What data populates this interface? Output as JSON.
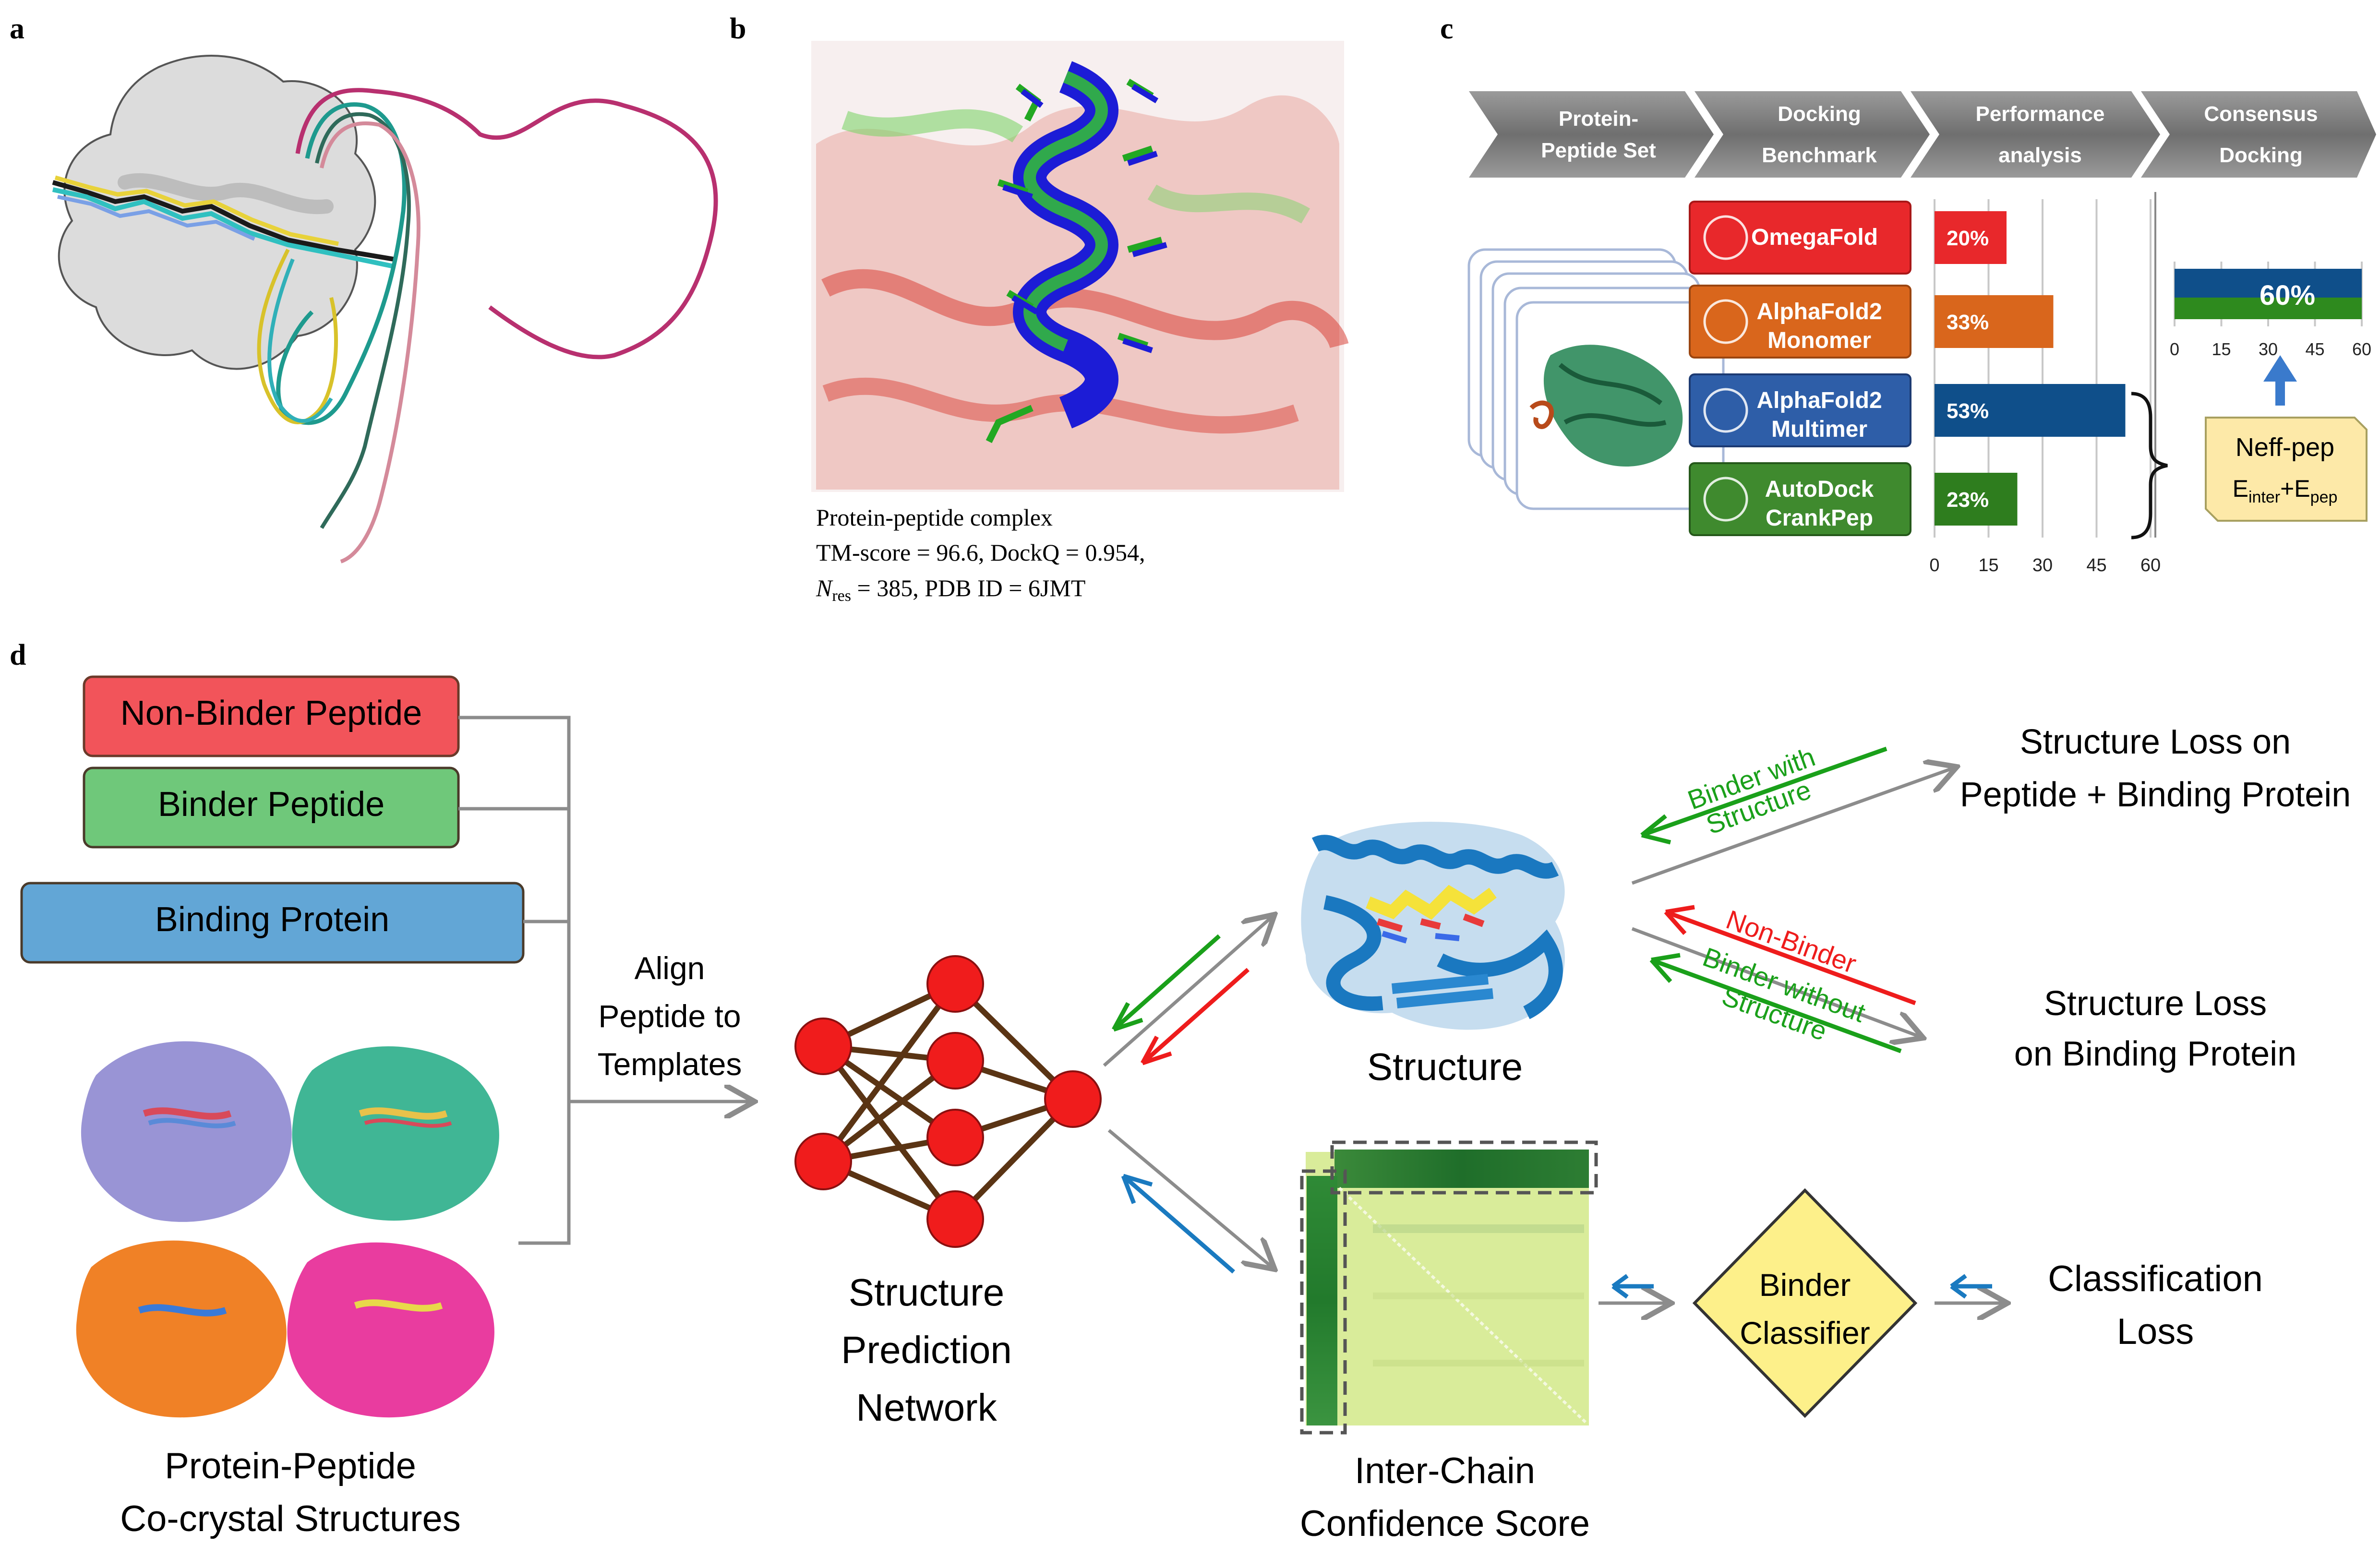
{
  "panels": {
    "a": "a",
    "b": "b",
    "c": "c",
    "d": "d"
  },
  "panel_b": {
    "caption_line1": "Protein-peptide complex",
    "caption_line2": "TM-score = 96.6, DockQ = 0.954,",
    "caption_line3_n": "N",
    "caption_line3_sub": "res",
    "caption_line3_rest": " = 385, PDB ID = 6JMT"
  },
  "panel_c": {
    "pipeline": [
      {
        "line1": "Protein-",
        "line2": "Peptide Set"
      },
      {
        "line1": "Docking",
        "line2": "Benchmark"
      },
      {
        "line1": "Performance",
        "line2": "analysis"
      },
      {
        "line1": "Consensus",
        "line2": "Docking"
      }
    ],
    "methods": [
      {
        "line1": "OmegaFold",
        "line2": "",
        "color": "#e8282b"
      },
      {
        "line1": "AlphaFold2",
        "line2": "Monomer",
        "color": "#d9661c"
      },
      {
        "line1": "AlphaFold2",
        "line2": "Multimer",
        "color": "#2e5ea8"
      },
      {
        "line1": "AutoDock",
        "line2": "CrankPep",
        "color": "#3f8a2e"
      }
    ],
    "neff_line1": "Neff-pep",
    "neff_e1": "E",
    "neff_sub1": "inter",
    "neff_plus": "+E",
    "neff_sub2": "pep"
  },
  "chart_data": [
    {
      "type": "bar",
      "orientation": "horizontal",
      "categories": [
        "OmegaFold",
        "AlphaFold2 Monomer",
        "AlphaFold2 Multimer",
        "AutoDock CrankPep"
      ],
      "values": [
        20,
        33,
        53,
        23
      ],
      "value_labels": [
        "20%",
        "33%",
        "53%",
        "23%"
      ],
      "colors": [
        "#e8282b",
        "#d9661c",
        "#0f4f8a",
        "#2e7d1e"
      ],
      "xlim": [
        0,
        60
      ],
      "ticks": [
        "0",
        "15",
        "30",
        "45",
        "60"
      ],
      "grid": true
    },
    {
      "type": "bar",
      "orientation": "horizontal",
      "categories": [
        "Consensus"
      ],
      "values": [
        60
      ],
      "value_labels": [
        "60%"
      ],
      "colors": [
        "#0f4f8a",
        "#2e8a1e"
      ],
      "xlim": [
        0,
        60
      ],
      "ticks": [
        "0",
        "15",
        "30",
        "45",
        "60"
      ],
      "grid": true
    }
  ],
  "panel_d": {
    "non_binder": "Non-Binder Peptide",
    "binder": "Binder Peptide",
    "binding_protein": "Binding Protein",
    "align_line1": "Align",
    "align_line2": "Peptide to",
    "align_line3": "Templates",
    "cocrystal_line1": "Protein-Peptide",
    "cocrystal_line2": "Co-crystal Structures",
    "network_line1": "Structure",
    "network_line2": "Prediction",
    "network_line3": "Network",
    "structure": "Structure",
    "confidence_line1": "Inter-Chain",
    "confidence_line2": "Confidence Score",
    "classifier_line1": "Binder",
    "classifier_line2": "Classifier",
    "classification_line1": "Classification",
    "classification_line2": "Loss",
    "loss1_line1": "Structure Loss on",
    "loss1_line2": "Peptide + Binding Protein",
    "loss2_line1": "Structure Loss",
    "loss2_line2": "on Binding Protein",
    "binder_with_line1": "Binder with",
    "binder_with_line2": "Structure",
    "non_binder_arrow": "Non-Binder",
    "binder_without_line1": "Binder without",
    "binder_without_line2": "Structure"
  }
}
